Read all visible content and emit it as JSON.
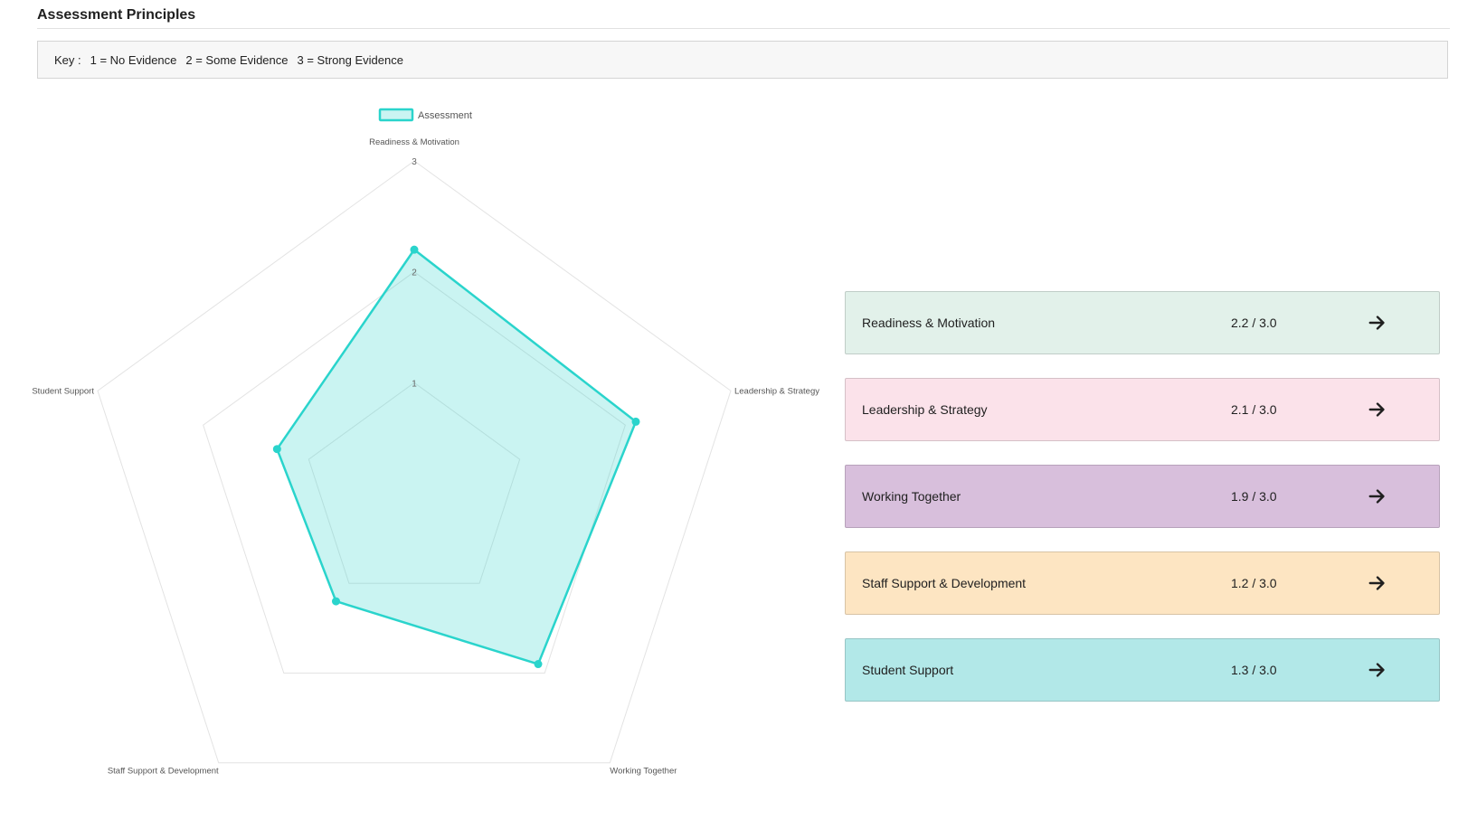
{
  "header": {
    "title": "Assessment Principles"
  },
  "key": {
    "prefix": "Key :",
    "items": [
      "1 = No Evidence",
      "2 = Some Evidence",
      "3 = Strong Evidence"
    ]
  },
  "chart_data": {
    "type": "radar",
    "legend": [
      {
        "name": "Assessment",
        "color": "#2ad4cc"
      }
    ],
    "axes": [
      "Readiness & Motivation",
      "Leadership & Strategy",
      "Working Together",
      "Staff Support & Development",
      "Student Support"
    ],
    "scale": {
      "min": 0,
      "max": 3,
      "ticks": [
        1,
        2,
        3
      ]
    },
    "series": [
      {
        "name": "Assessment",
        "values": [
          2.2,
          2.1,
          1.9,
          1.2,
          1.3
        ],
        "color": "#2ad4cc",
        "fill": "rgba(42, 212, 204, 0.25)"
      }
    ],
    "grid": true
  },
  "cards": [
    {
      "label": "Readiness & Motivation",
      "score": "2.2 / 3.0",
      "bg": "#e2f1ea"
    },
    {
      "label": "Leadership & Strategy",
      "score": "2.1 / 3.0",
      "bg": "#fbe2ea"
    },
    {
      "label": "Working Together",
      "score": "1.9 / 3.0",
      "bg": "#d8bfdc"
    },
    {
      "label": "Staff Support & Development",
      "score": "1.2 / 3.0",
      "bg": "#fde5c2"
    },
    {
      "label": "Student Support",
      "score": "1.3 / 3.0",
      "bg": "#b2e8e8"
    }
  ]
}
